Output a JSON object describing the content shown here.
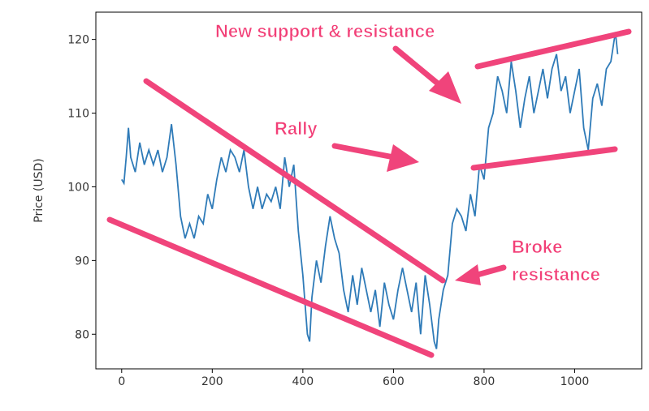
{
  "chart_data": {
    "type": "line",
    "y_label": "Price (USD)",
    "annotations": [
      "New support & resistance",
      "Rally",
      "Broke",
      "resistance"
    ],
    "x": [
      0,
      5,
      10,
      15,
      20,
      30,
      40,
      50,
      60,
      70,
      80,
      90,
      100,
      110,
      120,
      130,
      140,
      150,
      160,
      170,
      180,
      190,
      200,
      210,
      220,
      230,
      240,
      250,
      260,
      270,
      280,
      290,
      300,
      310,
      320,
      330,
      340,
      350,
      360,
      370,
      380,
      390,
      400,
      410,
      415,
      420,
      430,
      440,
      450,
      460,
      470,
      480,
      490,
      500,
      510,
      520,
      530,
      540,
      550,
      560,
      570,
      580,
      590,
      600,
      610,
      620,
      630,
      640,
      650,
      660,
      670,
      680,
      690,
      695,
      700,
      710,
      720,
      730,
      740,
      750,
      760,
      770,
      780,
      790,
      800,
      810,
      820,
      830,
      840,
      850,
      860,
      870,
      880,
      890,
      900,
      910,
      920,
      930,
      940,
      950,
      960,
      970,
      980,
      990,
      1000,
      1010,
      1020,
      1030,
      1040,
      1050,
      1060,
      1070,
      1080,
      1090,
      1095
    ],
    "series": [
      {
        "name": "Price",
        "color": "#2f7bb8",
        "values": [
          101,
          100.5,
          104,
          108,
          104,
          102,
          106,
          103,
          105,
          103,
          105,
          102,
          104,
          108.5,
          103,
          96,
          93,
          95,
          93,
          96,
          95,
          99,
          97,
          101,
          104,
          102,
          105,
          104,
          102,
          105,
          100,
          97,
          100,
          97,
          99,
          98,
          100,
          97,
          104,
          100,
          103,
          94,
          88,
          80,
          79,
          85,
          90,
          87,
          92,
          96,
          93,
          91,
          86,
          83,
          88,
          84,
          89,
          86,
          83,
          86,
          81,
          87,
          84,
          82,
          86,
          89,
          86,
          83,
          87,
          80,
          88,
          84,
          79,
          78,
          82,
          86,
          88,
          95,
          97,
          96,
          94,
          99,
          96,
          103,
          101,
          108,
          110,
          115,
          113,
          110,
          117,
          113,
          108,
          112,
          115,
          110,
          113,
          116,
          112,
          116,
          118,
          113,
          115,
          110,
          113,
          116,
          108,
          105,
          112,
          114,
          111,
          116,
          117,
          121,
          118
        ]
      }
    ],
    "xlim": [
      -57,
      1148
    ],
    "ylim": [
      75.3,
      123.7
    ],
    "xticks": [
      0,
      200,
      400,
      600,
      800,
      1000
    ],
    "yticks": [
      80,
      90,
      100,
      110,
      120
    ]
  }
}
